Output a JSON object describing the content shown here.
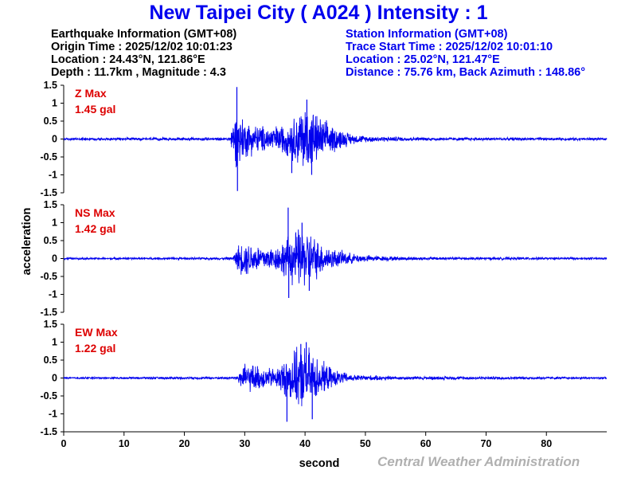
{
  "title": "New Taipei City ( A024 ) Intensity : 1",
  "earthquake": {
    "header": "Earthquake Information (GMT+08)",
    "origin_time": "Origin Time : 2025/12/02 10:01:23",
    "location": "Location : 24.43°N, 121.86°E",
    "depth_magnitude": "Depth : 11.7km , Magnitude : 4.3"
  },
  "station": {
    "header": "Station Information (GMT+08)",
    "trace_start": "Trace Start Time : 2025/12/02 10:01:10",
    "location": "Location : 25.02°N, 121.47°E",
    "distance": "Distance : 75.76 km, Back Azimuth : 148.86°"
  },
  "footer": "Central Weather Administration",
  "colors": {
    "title": "#0000ee",
    "trace": "#0000ee",
    "max_label": "#dd0000",
    "footer": "#b0b0b0"
  },
  "chart_data": {
    "type": "line",
    "xlabel": "second",
    "ylabel": "acceleration",
    "xlim": [
      0,
      90
    ],
    "ylim": [
      -1.5,
      1.5
    ],
    "x_ticks": [
      0,
      10,
      20,
      30,
      40,
      50,
      60,
      70,
      80
    ],
    "y_ticks": [
      1.5,
      1,
      0.5,
      0,
      -0.5,
      -1,
      -1.5
    ],
    "y_tick_labels": [
      "1.5",
      "1",
      "0.5",
      "0",
      "-0.5",
      "-1",
      "-1.5"
    ],
    "series": [
      {
        "name": "Z",
        "max_label": "Z Max",
        "max_value": "1.45 gal",
        "envelope": [
          [
            0,
            0.04
          ],
          [
            27.5,
            0.05
          ],
          [
            28.3,
            0.8
          ],
          [
            29,
            0.9
          ],
          [
            30,
            0.6
          ],
          [
            32,
            0.45
          ],
          [
            34,
            0.4
          ],
          [
            36,
            0.45
          ],
          [
            37.5,
            0.55
          ],
          [
            38.5,
            0.8
          ],
          [
            40,
            1.1
          ],
          [
            41,
            1.0
          ],
          [
            42,
            0.75
          ],
          [
            44,
            0.5
          ],
          [
            46,
            0.3
          ],
          [
            48,
            0.15
          ],
          [
            50,
            0.1
          ],
          [
            55,
            0.07
          ],
          [
            60,
            0.05
          ],
          [
            90,
            0.04
          ]
        ],
        "spikes": [
          [
            28.7,
            1.45
          ],
          [
            28.8,
            -1.45
          ],
          [
            40.3,
            1.1
          ],
          [
            41.1,
            -1.0
          ],
          [
            37.8,
            -0.95
          ]
        ]
      },
      {
        "name": "NS",
        "max_label": "NS Max",
        "max_value": "1.42 gal",
        "envelope": [
          [
            0,
            0.03
          ],
          [
            28,
            0.04
          ],
          [
            29,
            0.45
          ],
          [
            30,
            0.55
          ],
          [
            31,
            0.5
          ],
          [
            33,
            0.4
          ],
          [
            35,
            0.35
          ],
          [
            37,
            0.65
          ],
          [
            38,
            0.85
          ],
          [
            39,
            0.95
          ],
          [
            40.5,
            0.9
          ],
          [
            41.5,
            0.7
          ],
          [
            43,
            0.45
          ],
          [
            45,
            0.3
          ],
          [
            48,
            0.15
          ],
          [
            52,
            0.08
          ],
          [
            60,
            0.05
          ],
          [
            90,
            0.03
          ]
        ],
        "spikes": [
          [
            37.2,
            1.42
          ],
          [
            37.3,
            -1.1
          ],
          [
            39.5,
            1.0
          ],
          [
            40.7,
            -0.9
          ]
        ]
      },
      {
        "name": "EW",
        "max_label": "EW Max",
        "max_value": "1.22 gal",
        "envelope": [
          [
            0,
            0.03
          ],
          [
            28.5,
            0.04
          ],
          [
            29.5,
            0.4
          ],
          [
            31,
            0.45
          ],
          [
            33,
            0.35
          ],
          [
            35,
            0.3
          ],
          [
            36.5,
            0.55
          ],
          [
            38,
            0.8
          ],
          [
            39.5,
            1.0
          ],
          [
            40.5,
            1.0
          ],
          [
            41.5,
            0.75
          ],
          [
            43,
            0.5
          ],
          [
            45,
            0.25
          ],
          [
            48,
            0.1
          ],
          [
            55,
            0.06
          ],
          [
            90,
            0.03
          ]
        ],
        "spikes": [
          [
            37,
            -1.22
          ],
          [
            40.2,
            1.0
          ],
          [
            41.2,
            -1.15
          ],
          [
            39.3,
            0.95
          ]
        ]
      }
    ]
  }
}
